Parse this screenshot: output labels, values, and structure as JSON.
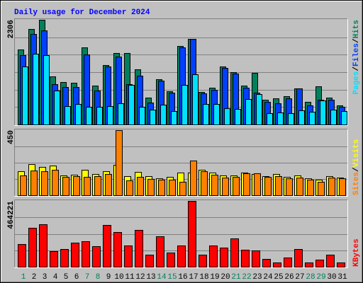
{
  "chart_data": [
    {
      "type": "bar",
      "title": "Daily usage for December 2024",
      "ylim": [
        0,
        2306
      ],
      "yticks": [
        2306
      ],
      "legend_separator": "/",
      "series": [
        {
          "name": "Hits",
          "color": "#00805c",
          "values": [
            1652,
            2103,
            2306,
            1059,
            935,
            919,
            1698,
            857,
            1309,
            1574,
            1574,
            1215,
            592,
            997,
            732,
            1729,
            1885,
            717,
            810,
            1278,
            1153,
            857,
            1137,
            545,
            576,
            623,
            795,
            499,
            841,
            592,
            421
          ]
        },
        {
          "name": "Files",
          "color": "#0040ff",
          "values": [
            1527,
            1994,
            2072,
            888,
            826,
            826,
            1542,
            748,
            1278,
            1496,
            888,
            1075,
            483,
            966,
            701,
            1698,
            1885,
            686,
            763,
            1246,
            1122,
            810,
            701,
            499,
            467,
            576,
            795,
            421,
            545,
            545,
            390
          ]
        },
        {
          "name": "Pages",
          "color": "#00e0ff",
          "values": [
            1278,
            1558,
            1527,
            748,
            405,
            452,
            390,
            390,
            405,
            467,
            872,
            390,
            327,
            436,
            296,
            872,
            1106,
            452,
            452,
            358,
            343,
            561,
            670,
            249,
            265,
            249,
            312,
            280,
            530,
            327,
            296
          ]
        }
      ]
    },
    {
      "type": "bar",
      "ylim": [
        0,
        450
      ],
      "yticks": [
        450
      ],
      "legend_separator": "/",
      "series": [
        {
          "name": "Visits",
          "color": "#ffff00",
          "values": [
            166,
            215,
            196,
            205,
            137,
            142,
            176,
            147,
            166,
            210,
            132,
            161,
            132,
            117,
            127,
            157,
            157,
            176,
            157,
            137,
            137,
            157,
            147,
            132,
            147,
            127,
            137,
            117,
            108,
            132,
            122
          ]
        },
        {
          "name": "Sites",
          "color": "#ff8000",
          "values": [
            137,
            171,
            166,
            176,
            127,
            132,
            127,
            132,
            147,
            450,
            103,
            127,
            113,
            108,
            108,
            93,
            240,
            166,
            142,
            122,
            127,
            152,
            152,
            127,
            132,
            117,
            122,
            108,
            93,
            122,
            117
          ]
        }
      ]
    },
    {
      "type": "bar",
      "ylim": [
        0,
        464221
      ],
      "yticks": [
        464221
      ],
      "categories": [
        "1",
        "2",
        "3",
        "4",
        "5",
        "6",
        "7",
        "8",
        "9",
        "10",
        "11",
        "12",
        "13",
        "14",
        "15",
        "16",
        "17",
        "18",
        "19",
        "20",
        "21",
        "22",
        "23",
        "24",
        "25",
        "26",
        "27",
        "28",
        "29",
        "30",
        "31"
      ],
      "category_colors": [
        "#00805c",
        "#000000",
        "#000000",
        "#000000",
        "#000000",
        "#000000",
        "#00805c",
        "#00805c",
        "#000000",
        "#000000",
        "#000000",
        "#000000",
        "#000000",
        "#00805c",
        "#00805c",
        "#000000",
        "#000000",
        "#000000",
        "#000000",
        "#000000",
        "#00805c",
        "#00805c",
        "#000000",
        "#000000",
        "#000000",
        "#000000",
        "#000000",
        "#00805c",
        "#00805c",
        "#000000",
        "#000000"
      ],
      "series": [
        {
          "name": "KBytes",
          "color": "#ff0000",
          "values": [
            159744,
            274560,
            299520,
            109824,
            124800,
            169728,
            179712,
            144768,
            294528,
            244608,
            149760,
            259584,
            84864,
            214656,
            99840,
            149760,
            464221,
            84864,
            149760,
            134784,
            199680,
            119808,
            114816,
            54912,
            29952,
            64896,
            124800,
            29952,
            49920,
            84864,
            29952
          ]
        }
      ]
    }
  ]
}
